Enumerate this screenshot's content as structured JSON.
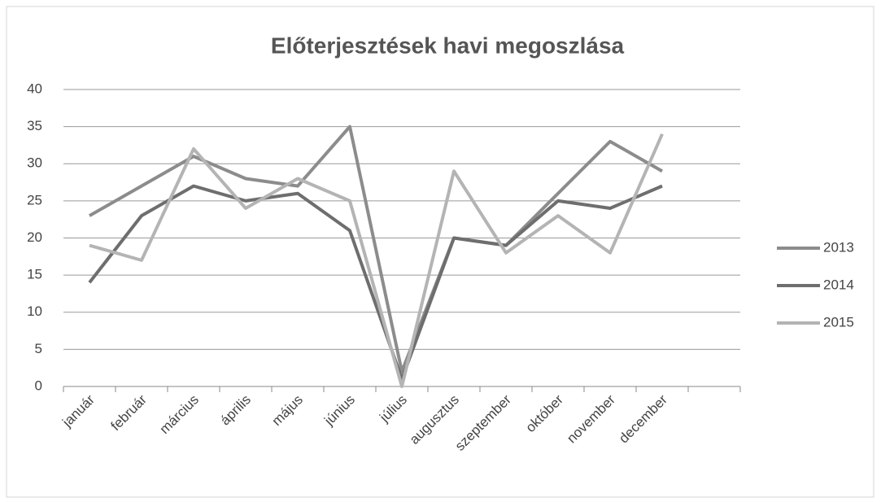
{
  "chart_data": {
    "type": "line",
    "title": "Előterjesztések havi megoszlása",
    "categories": [
      "január",
      "február",
      "március",
      "április",
      "május",
      "június",
      "július",
      "augusztus",
      "szeptember",
      "október",
      "november",
      "december",
      null
    ],
    "series": [
      {
        "name": "2013",
        "color": "#8c8c8c",
        "values": [
          23,
          27,
          31,
          28,
          27,
          35,
          2,
          20,
          19,
          26,
          33,
          29,
          null
        ]
      },
      {
        "name": "2014",
        "color": "#6e6e6e",
        "values": [
          14,
          23,
          27,
          25,
          26,
          21,
          1,
          20,
          19,
          25,
          24,
          27,
          null
        ]
      },
      {
        "name": "2015",
        "color": "#b4b4b4",
        "values": [
          19,
          17,
          32,
          24,
          28,
          25,
          0,
          29,
          18,
          23,
          18,
          34,
          null
        ]
      }
    ],
    "ylim": [
      0,
      40
    ],
    "yticks": [
      0,
      5,
      10,
      15,
      20,
      25,
      30,
      35,
      40
    ],
    "grid": true,
    "legend": "right"
  }
}
